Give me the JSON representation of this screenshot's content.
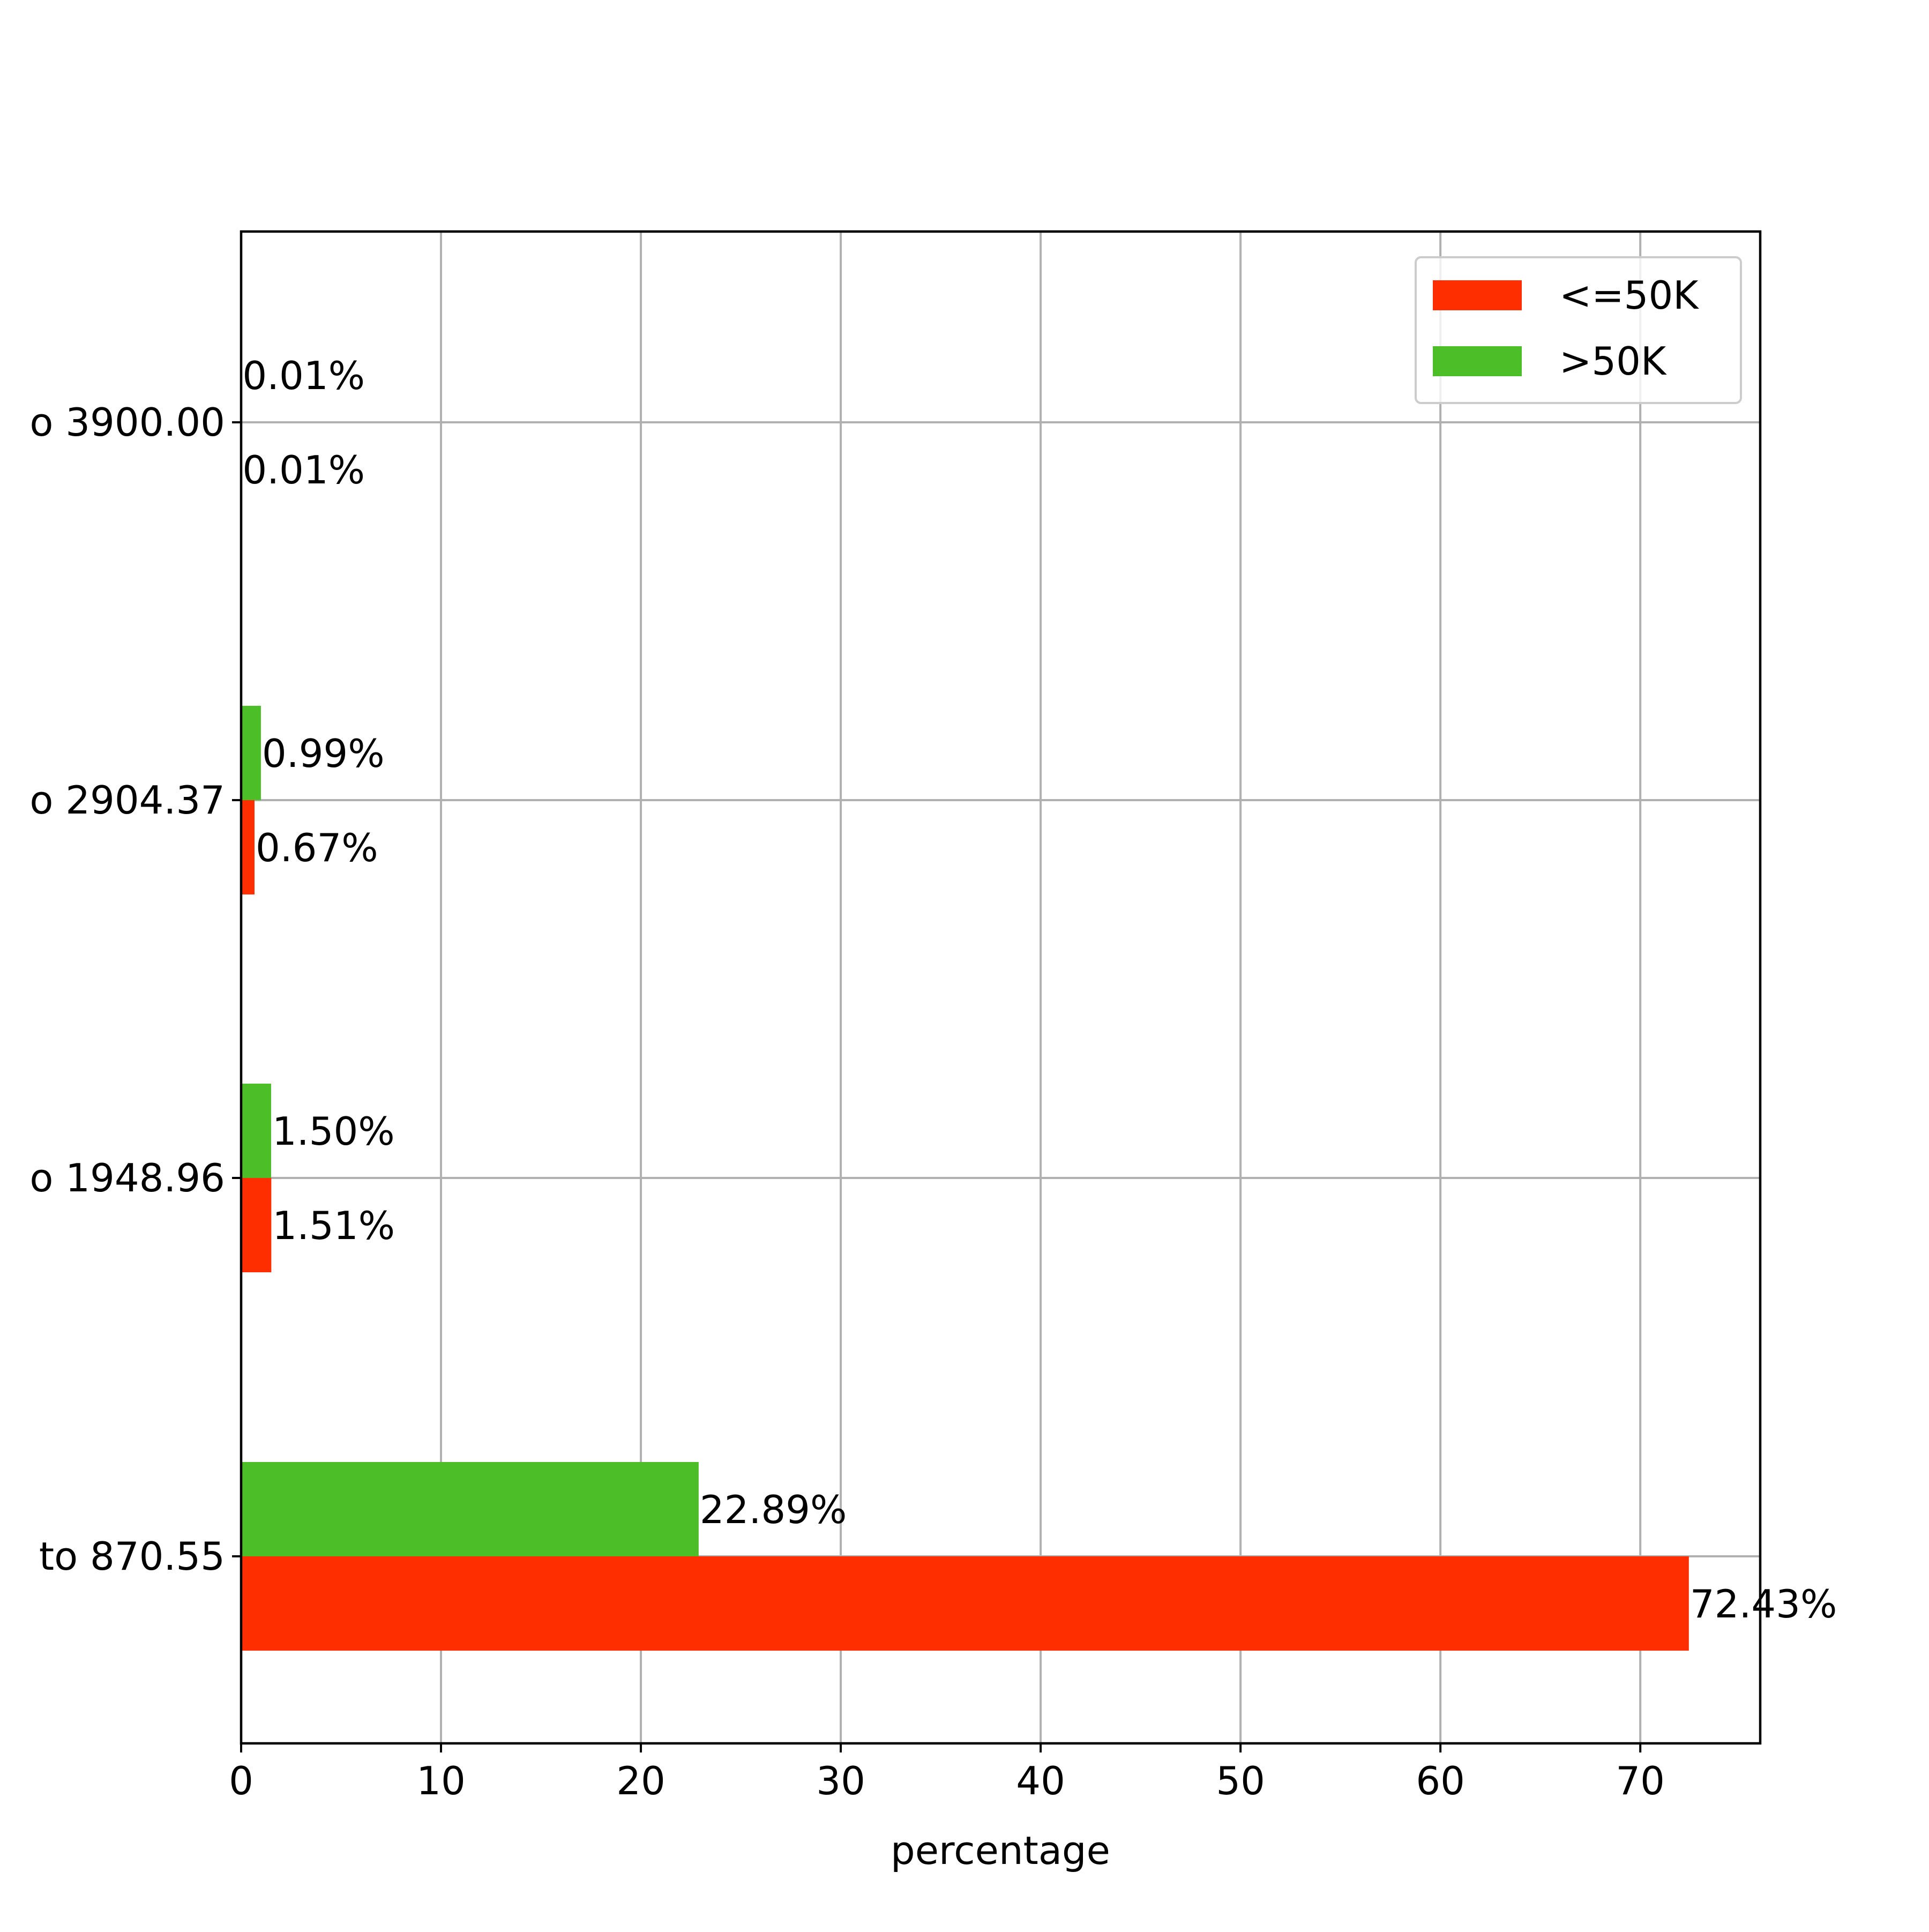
{
  "chart_data": {
    "type": "bar",
    "orientation": "horizontal",
    "categories": [
      "to 870.55",
      "o 1948.96",
      "o 2904.37",
      "o 3900.00"
    ],
    "series": [
      {
        "name": "<=50K",
        "color": "#ff2e00",
        "values": [
          72.43,
          1.51,
          0.67,
          0.01
        ],
        "labels": [
          "72.43%",
          "1.51%",
          "0.67%",
          "0.01%"
        ]
      },
      {
        "name": ">50K",
        "color": "#4cbe27",
        "values": [
          22.89,
          1.5,
          0.99,
          0.01
        ],
        "labels": [
          "22.89%",
          "1.50%",
          "0.99%",
          "0.01%"
        ]
      }
    ],
    "xlabel": "percentage",
    "ylabel": "",
    "xlim": [
      0,
      76
    ],
    "xticks": [
      0,
      10,
      20,
      30,
      40,
      50,
      60,
      70
    ],
    "grid": true,
    "legend_position": "top-right"
  }
}
